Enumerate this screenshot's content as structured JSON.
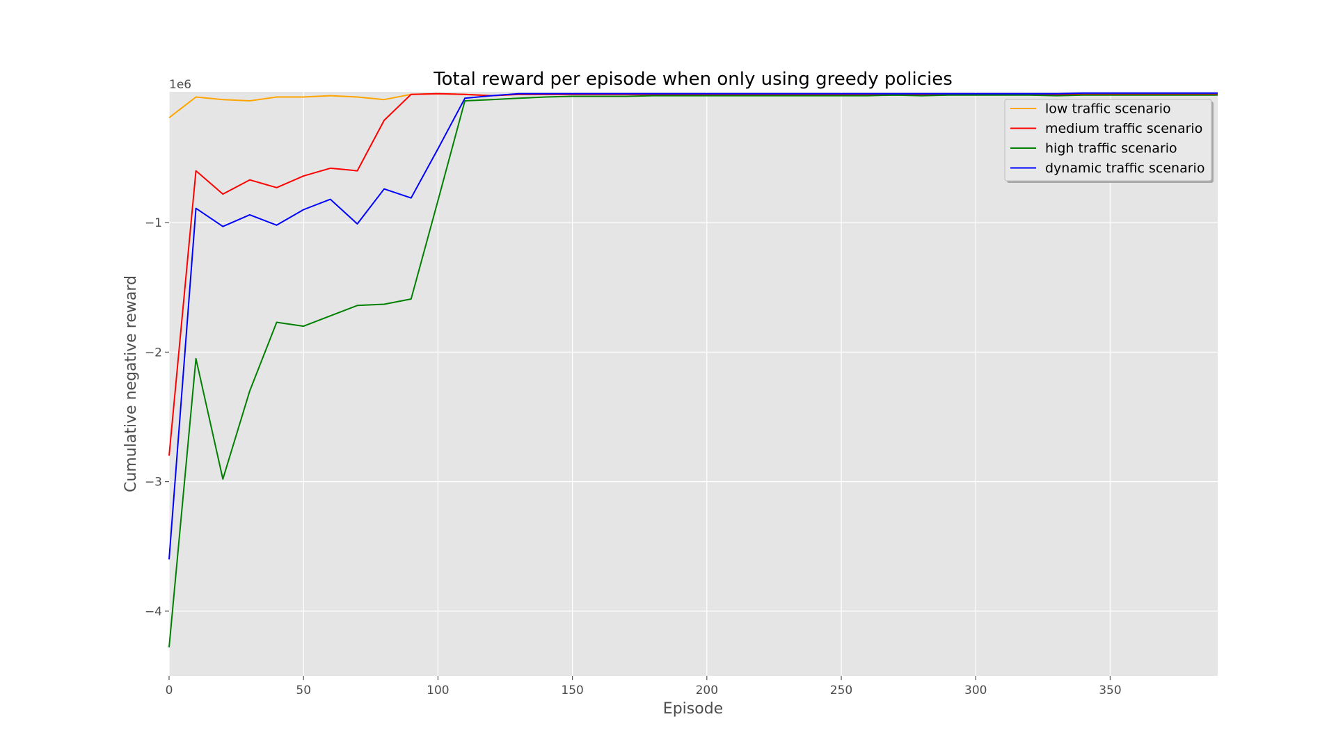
{
  "chart_data": {
    "type": "line",
    "title": "Total reward per episode when only using greedy policies",
    "xlabel": "Episode",
    "ylabel": "Cumulative negative reward",
    "y_offset_label": "1e6",
    "xlim": [
      0,
      390
    ],
    "ylim": [
      -4.5,
      0.01
    ],
    "x_ticks": [
      0,
      50,
      100,
      150,
      200,
      250,
      300,
      350
    ],
    "x_tick_labels": [
      "0",
      "50",
      "100",
      "150",
      "200",
      "250",
      "300",
      "350"
    ],
    "y_ticks": [
      -4,
      -3,
      -2,
      -1
    ],
    "y_tick_labels": [
      "−4",
      "−3",
      "−2",
      "−1"
    ],
    "grid": true,
    "legend_position": "top-right",
    "x": [
      0,
      10,
      20,
      30,
      40,
      50,
      60,
      70,
      80,
      90,
      100,
      110,
      120,
      130,
      140,
      150,
      160,
      170,
      180,
      190,
      200,
      210,
      220,
      230,
      240,
      250,
      260,
      270,
      280,
      290,
      300,
      310,
      320,
      330,
      340,
      350,
      360,
      370,
      380,
      390
    ],
    "series": [
      {
        "name": "low traffic scenario",
        "color": "#ffa500",
        "values": [
          -0.19,
          -0.03,
          -0.05,
          -0.06,
          -0.03,
          -0.03,
          -0.02,
          -0.03,
          -0.05,
          -0.01,
          -0.005,
          -0.01,
          -0.02,
          -0.01,
          -0.01,
          -0.01,
          -0.01,
          -0.01,
          -0.01,
          -0.01,
          -0.01,
          -0.01,
          -0.01,
          -0.01,
          -0.01,
          -0.01,
          -0.01,
          -0.01,
          -0.01,
          -0.01,
          -0.01,
          -0.01,
          -0.01,
          -0.01,
          -0.01,
          -0.01,
          -0.01,
          -0.01,
          -0.01,
          -0.01
        ]
      },
      {
        "name": "medium traffic scenario",
        "color": "#ff0000",
        "values": [
          -2.8,
          -0.6,
          -0.78,
          -0.67,
          -0.73,
          -0.64,
          -0.58,
          -0.6,
          -0.21,
          -0.01,
          -0.005,
          -0.01,
          -0.02,
          -0.01,
          -0.01,
          -0.01,
          -0.01,
          -0.01,
          -0.01,
          -0.01,
          -0.01,
          -0.01,
          -0.01,
          -0.01,
          -0.01,
          -0.01,
          -0.01,
          -0.01,
          -0.01,
          -0.01,
          -0.01,
          -0.01,
          -0.01,
          -0.01,
          -0.01,
          -0.01,
          -0.01,
          -0.01,
          -0.01,
          -0.01
        ]
      },
      {
        "name": "high traffic scenario",
        "color": "#008000",
        "values": [
          -4.28,
          -2.05,
          -2.98,
          -2.3,
          -1.77,
          -1.8,
          -1.72,
          -1.64,
          -1.63,
          -1.59,
          -0.83,
          -0.06,
          -0.05,
          -0.04,
          -0.03,
          -0.025,
          -0.025,
          -0.025,
          -0.02,
          -0.02,
          -0.02,
          -0.02,
          -0.02,
          -0.02,
          -0.02,
          -0.02,
          -0.02,
          -0.015,
          -0.02,
          -0.015,
          -0.015,
          -0.015,
          -0.015,
          -0.02,
          -0.015,
          -0.015,
          -0.015,
          -0.015,
          -0.015,
          -0.015
        ]
      },
      {
        "name": "dynamic traffic scenario",
        "color": "#0000ff",
        "values": [
          -3.6,
          -0.89,
          -1.03,
          -0.94,
          -1.02,
          -0.9,
          -0.82,
          -1.01,
          -0.74,
          -0.81,
          -0.43,
          -0.04,
          -0.02,
          -0.005,
          -0.005,
          -0.005,
          -0.005,
          -0.005,
          -0.005,
          -0.005,
          -0.005,
          -0.005,
          -0.005,
          -0.005,
          -0.005,
          -0.005,
          -0.005,
          -0.005,
          -0.005,
          -0.005,
          -0.005,
          -0.005,
          -0.005,
          -0.005,
          0,
          0,
          0,
          0,
          0,
          0
        ]
      }
    ]
  }
}
